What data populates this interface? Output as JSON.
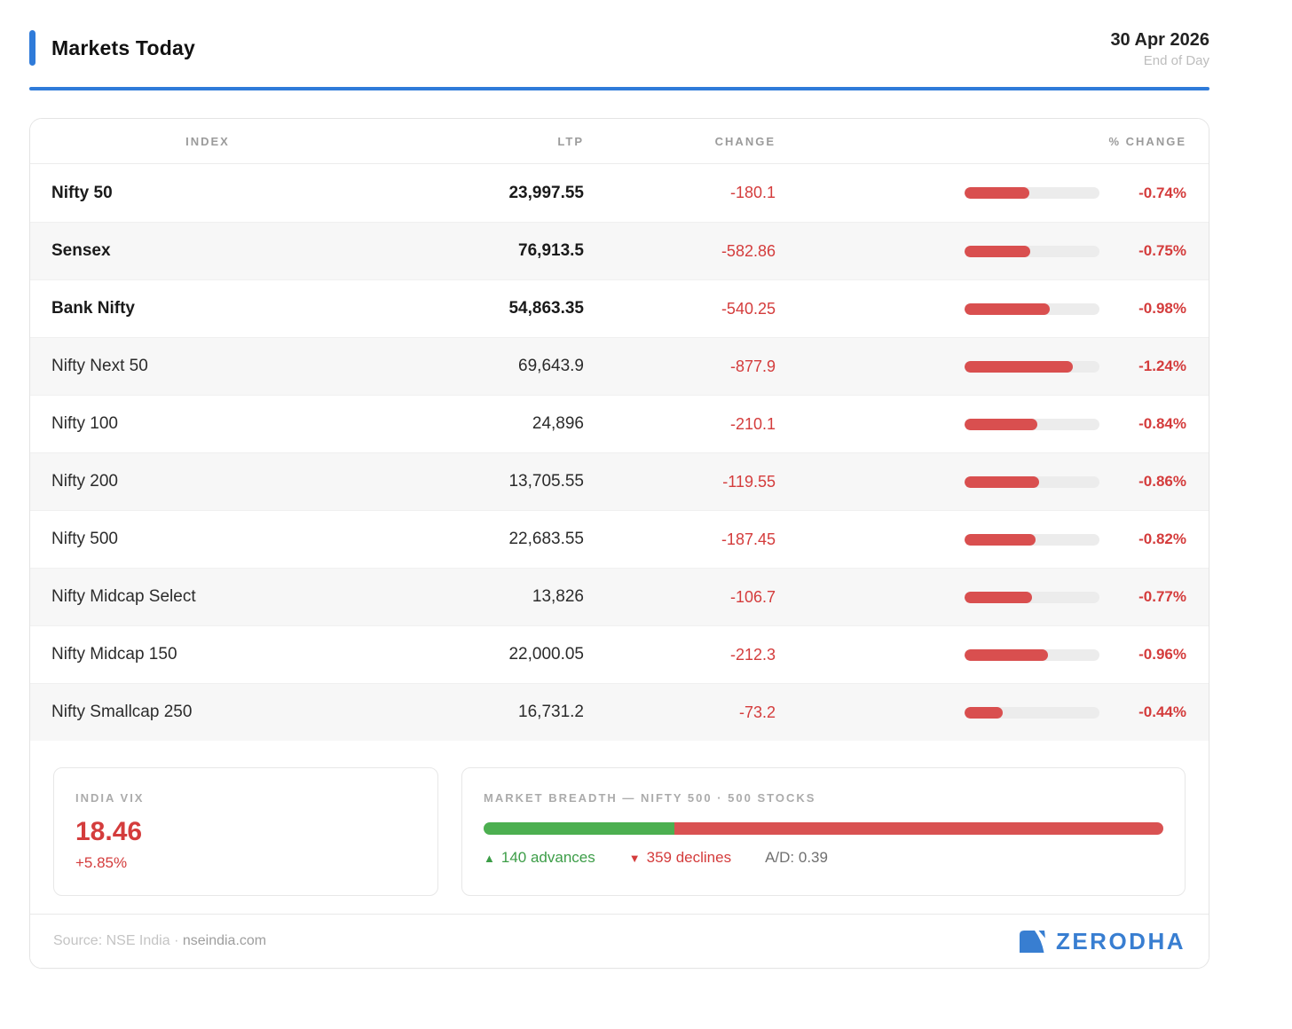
{
  "header": {
    "title": "Markets Today",
    "date": "30 Apr 2026",
    "subtitle": "End of Day"
  },
  "table": {
    "columns": [
      "INDEX",
      "LTP",
      "CHANGE",
      "% CHANGE"
    ],
    "bar_max_pct": 1.24,
    "bar_max_fill_pct": 80,
    "rows": [
      {
        "index": "Nifty 50",
        "ltp": "23,997.55",
        "change": "-180.1",
        "pct_change": "-0.74%",
        "pct_num": 0.74,
        "bold": true
      },
      {
        "index": "Sensex",
        "ltp": "76,913.5",
        "change": "-582.86",
        "pct_change": "-0.75%",
        "pct_num": 0.75,
        "bold": true
      },
      {
        "index": "Bank Nifty",
        "ltp": "54,863.35",
        "change": "-540.25",
        "pct_change": "-0.98%",
        "pct_num": 0.98,
        "bold": true
      },
      {
        "index": "Nifty Next 50",
        "ltp": "69,643.9",
        "change": "-877.9",
        "pct_change": "-1.24%",
        "pct_num": 1.24,
        "bold": false
      },
      {
        "index": "Nifty 100",
        "ltp": "24,896",
        "change": "-210.1",
        "pct_change": "-0.84%",
        "pct_num": 0.84,
        "bold": false
      },
      {
        "index": "Nifty 200",
        "ltp": "13,705.55",
        "change": "-119.55",
        "pct_change": "-0.86%",
        "pct_num": 0.86,
        "bold": false
      },
      {
        "index": "Nifty 500",
        "ltp": "22,683.55",
        "change": "-187.45",
        "pct_change": "-0.82%",
        "pct_num": 0.82,
        "bold": false
      },
      {
        "index": "Nifty Midcap Select",
        "ltp": "13,826",
        "change": "-106.7",
        "pct_change": "-0.77%",
        "pct_num": 0.77,
        "bold": false
      },
      {
        "index": "Nifty Midcap 150",
        "ltp": "22,000.05",
        "change": "-212.3",
        "pct_change": "-0.96%",
        "pct_num": 0.96,
        "bold": false
      },
      {
        "index": "Nifty Smallcap 250",
        "ltp": "16,731.2",
        "change": "-73.2",
        "pct_change": "-0.44%",
        "pct_num": 0.44,
        "bold": false
      }
    ]
  },
  "vix": {
    "label": "INDIA VIX",
    "value": "18.46",
    "change": "+5.85%"
  },
  "breadth": {
    "label": "MARKET BREADTH — NIFTY 500 · 500 STOCKS",
    "advances": 140,
    "declines": 359,
    "up_arrow": "▲",
    "down_arrow": "▼",
    "advances_label": "140 advances",
    "declines_label": "359 declines",
    "ad_ratio_label": "A/D: 0.39"
  },
  "footer": {
    "source_prefix": "Source: NSE India · ",
    "source_link": "nseindia.com",
    "brand": "ZERODHA"
  },
  "colors": {
    "accent_blue": "#2F7BD9",
    "brand_blue": "#387ED1",
    "negative_red": "#D43C3C",
    "bar_red": "#D94F4F",
    "bar_track": "#ECECEC",
    "positive_green": "#3C9D47",
    "breadth_green": "#4CAF50",
    "breadth_red": "#D95252",
    "header_gray": "#9B9B9B"
  },
  "chart_data": [
    {
      "type": "table",
      "title": "Markets Today — 30 Apr 2026 (End of Day)",
      "columns": [
        "INDEX",
        "LTP",
        "CHANGE",
        "% CHANGE"
      ],
      "rows": [
        [
          "Nifty 50",
          23997.55,
          -180.1,
          -0.74
        ],
        [
          "Sensex",
          76913.5,
          -582.86,
          -0.75
        ],
        [
          "Bank Nifty",
          54863.35,
          -540.25,
          -0.98
        ],
        [
          "Nifty Next 50",
          69643.9,
          -877.9,
          -1.24
        ],
        [
          "Nifty 100",
          24896,
          -210.1,
          -0.84
        ],
        [
          "Nifty 200",
          13705.55,
          -119.55,
          -0.86
        ],
        [
          "Nifty 500",
          22683.55,
          -187.45,
          -0.82
        ],
        [
          "Nifty Midcap Select",
          13826,
          -106.7,
          -0.77
        ],
        [
          "Nifty Midcap 150",
          22000.05,
          -212.3,
          -0.96
        ],
        [
          "Nifty Smallcap 250",
          16731.2,
          -73.2,
          -0.44
        ]
      ],
      "notes": "Each row has an inline horizontal bar encoding |% change|, red fill on gray track, max bar at -1.24%"
    },
    {
      "type": "bar",
      "title": "MARKET BREADTH — NIFTY 500 · 500 STOCKS",
      "categories": [
        "advances",
        "declines"
      ],
      "values": [
        140,
        359
      ],
      "annotations": [
        "140 advances",
        "359 declines",
        "A/D: 0.39"
      ],
      "layout": "single stacked horizontal bar, green vs red"
    },
    {
      "type": "table",
      "title": "INDIA VIX",
      "columns": [
        "value",
        "change"
      ],
      "rows": [
        [
          18.46,
          "+5.85%"
        ]
      ]
    }
  ]
}
